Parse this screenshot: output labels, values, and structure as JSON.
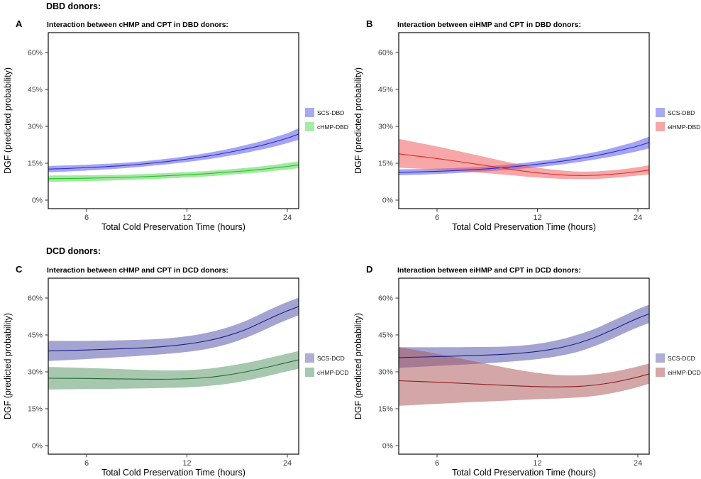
{
  "figure": {
    "group_headers": {
      "dbd": "DBD donors:",
      "dcd": "DCD donors:"
    }
  },
  "chart_data": [
    {
      "type": "area",
      "panel_label": "A",
      "title": "Interaction between cHMP and CPT in DBD donors:",
      "xlabel": "Total Cold Preservation Time (hours)",
      "ylabel": "DGF (predicted probability)",
      "x_scale": "log2",
      "xlim": [
        4.6,
        26
      ],
      "ylim": [
        -3.5,
        68
      ],
      "x_tick_values": [
        6,
        12,
        24
      ],
      "x_tick_labels": [
        "6",
        "12",
        "24"
      ],
      "y_tick_values": [
        0,
        15,
        30,
        45,
        60
      ],
      "y_tick_labels": [
        "0%",
        "15%",
        "30%",
        "45%",
        "60%"
      ],
      "grid": false,
      "legend_position": "right",
      "series": [
        {
          "name": "SCS-DBD",
          "line_color": "#2a2acc",
          "fill_color": "#4a4ae8",
          "fill_opacity": 0.5,
          "legend_color": "#a9a9f2",
          "x": [
            4.6,
            6,
            8,
            10,
            12,
            14,
            16,
            18,
            20,
            22,
            24,
            26
          ],
          "y": [
            12.6,
            13.2,
            14.2,
            15.4,
            16.7,
            18.0,
            19.4,
            20.8,
            22.2,
            23.7,
            25.2,
            26.9
          ],
          "lo": [
            11.3,
            12.0,
            13.1,
            14.3,
            15.5,
            16.7,
            18.0,
            19.2,
            20.5,
            21.8,
            23.2,
            24.5
          ],
          "hi": [
            13.9,
            14.4,
            15.3,
            16.5,
            17.9,
            19.3,
            20.8,
            22.4,
            23.9,
            25.6,
            27.2,
            29.3
          ]
        },
        {
          "name": "cHMP-DBD",
          "line_color": "#2bbd2b",
          "fill_color": "#44d344",
          "fill_opacity": 0.5,
          "legend_color": "#a6eca6",
          "x": [
            4.6,
            6,
            8,
            10,
            12,
            14,
            16,
            18,
            20,
            22,
            24,
            26
          ],
          "y": [
            8.7,
            8.9,
            9.3,
            9.8,
            10.3,
            10.8,
            11.4,
            11.9,
            12.5,
            13.1,
            13.7,
            14.3
          ],
          "lo": [
            7.4,
            7.7,
            8.2,
            8.7,
            9.2,
            9.7,
            10.3,
            10.8,
            11.3,
            11.9,
            12.4,
            13.0
          ],
          "hi": [
            10.0,
            10.1,
            10.4,
            10.9,
            11.4,
            11.9,
            12.5,
            13.1,
            13.7,
            14.4,
            15.1,
            15.8
          ]
        }
      ]
    },
    {
      "type": "area",
      "panel_label": "B",
      "title": "Interaction between eiHMP and CPT in DBD donors:",
      "xlabel": "Total Cold Preservation Time (hours)",
      "ylabel": "DGF (predicted probability)",
      "x_scale": "log2",
      "xlim": [
        4.6,
        26
      ],
      "ylim": [
        -3.5,
        68
      ],
      "x_tick_values": [
        6,
        12,
        24
      ],
      "x_tick_labels": [
        "6",
        "12",
        "24"
      ],
      "y_tick_values": [
        0,
        15,
        30,
        45,
        60
      ],
      "y_tick_labels": [
        "0%",
        "15%",
        "30%",
        "45%",
        "60%"
      ],
      "grid": false,
      "legend_position": "right",
      "series": [
        {
          "name": "SCS-DBD",
          "line_color": "#2a2acc",
          "fill_color": "#4a4ae8",
          "fill_opacity": 0.5,
          "legend_color": "#a9a9f2",
          "x": [
            4.6,
            6,
            8,
            10,
            12,
            14,
            16,
            18,
            20,
            22,
            24,
            26
          ],
          "y": [
            11.3,
            11.7,
            12.5,
            13.5,
            14.6,
            15.7,
            16.9,
            18.1,
            19.4,
            20.7,
            22.0,
            23.5
          ],
          "lo": [
            10.1,
            10.6,
            11.5,
            12.4,
            13.4,
            14.4,
            15.5,
            16.6,
            17.7,
            18.8,
            19.9,
            21.1
          ],
          "hi": [
            12.5,
            12.8,
            13.5,
            14.6,
            15.8,
            17.0,
            18.3,
            19.6,
            21.1,
            22.6,
            24.1,
            25.9
          ]
        },
        {
          "name": "eiHMP-DBD",
          "line_color": "#e02a2a",
          "fill_color": "#ef5050",
          "fill_opacity": 0.5,
          "legend_color": "#f6a7a7",
          "x": [
            4.6,
            6,
            8,
            10,
            12,
            14,
            16,
            18,
            20,
            22,
            24,
            26
          ],
          "y": [
            18.8,
            16.9,
            14.5,
            12.5,
            11.1,
            10.3,
            10.0,
            10.1,
            10.5,
            11.0,
            11.6,
            12.2
          ],
          "lo": [
            13.2,
            12.4,
            11.2,
            10.1,
            9.2,
            8.7,
            8.5,
            8.6,
            9.0,
            9.5,
            10.0,
            10.4
          ],
          "hi": [
            24.9,
            21.8,
            18.1,
            15.2,
            13.2,
            12.1,
            11.6,
            11.7,
            12.1,
            12.7,
            13.4,
            14.2
          ]
        }
      ]
    },
    {
      "type": "area",
      "panel_label": "C",
      "title": "Interaction between cHMP and CPT in DCD donors:",
      "xlabel": "Total Cold Preservation Time (hours)",
      "ylabel": "DGF (predicted probability)",
      "x_scale": "log2",
      "xlim": [
        4.6,
        26
      ],
      "ylim": [
        -3.5,
        68
      ],
      "x_tick_values": [
        6,
        12,
        24
      ],
      "x_tick_labels": [
        "6",
        "12",
        "24"
      ],
      "y_tick_values": [
        0,
        15,
        30,
        45,
        60
      ],
      "y_tick_labels": [
        "0%",
        "15%",
        "30%",
        "45%",
        "60%"
      ],
      "grid": false,
      "legend_position": "right",
      "series": [
        {
          "name": "SCS-DCD",
          "line_color": "#1d1d85",
          "fill_color": "#4a4aa8",
          "fill_opacity": 0.5,
          "legend_color": "#aeaed6",
          "x": [
            4.6,
            6,
            8,
            10,
            12,
            14,
            16,
            18,
            20,
            22,
            24,
            26
          ],
          "y": [
            38.5,
            38.9,
            39.5,
            40.2,
            41.3,
            42.8,
            44.8,
            47.2,
            50.0,
            52.6,
            54.8,
            56.6
          ],
          "lo": [
            34.4,
            35.2,
            36.2,
            37.1,
            38.1,
            39.5,
            41.4,
            43.8,
            46.4,
            49.0,
            51.2,
            53.0
          ],
          "hi": [
            42.6,
            42.6,
            42.9,
            43.4,
            44.5,
            46.1,
            48.2,
            50.7,
            53.6,
            56.2,
            58.4,
            60.2
          ]
        },
        {
          "name": "cHMP-DCD",
          "line_color": "#206b33",
          "fill_color": "#4f8f5f",
          "fill_opacity": 0.5,
          "legend_color": "#a7c7af",
          "x": [
            4.6,
            6,
            8,
            10,
            12,
            14,
            16,
            18,
            20,
            22,
            24,
            26
          ],
          "y": [
            27.4,
            27.3,
            27.1,
            27.0,
            27.2,
            27.8,
            28.8,
            30.0,
            31.3,
            32.6,
            33.8,
            34.9
          ],
          "lo": [
            22.8,
            23.0,
            23.2,
            23.4,
            23.7,
            24.3,
            25.2,
            26.4,
            27.7,
            29.0,
            30.2,
            31.3
          ],
          "hi": [
            32.0,
            31.6,
            31.0,
            30.6,
            30.7,
            31.3,
            32.4,
            33.6,
            34.9,
            36.2,
            37.4,
            38.5
          ]
        }
      ]
    },
    {
      "type": "area",
      "panel_label": "D",
      "title": "Interaction between eiHMP and CPT in DCD donors:",
      "xlabel": "Total Cold Preservation Time (hours)",
      "ylabel": "DGF (predicted probability)",
      "x_scale": "log2",
      "xlim": [
        4.6,
        26
      ],
      "ylim": [
        -3.5,
        68
      ],
      "x_tick_values": [
        6,
        12,
        24
      ],
      "x_tick_labels": [
        "6",
        "12",
        "24"
      ],
      "y_tick_values": [
        0,
        15,
        30,
        45,
        60
      ],
      "y_tick_labels": [
        "0%",
        "15%",
        "30%",
        "45%",
        "60%"
      ],
      "grid": false,
      "legend_position": "right",
      "series": [
        {
          "name": "SCS-DCD",
          "line_color": "#1d1d85",
          "fill_color": "#4a4aa8",
          "fill_opacity": 0.5,
          "legend_color": "#aeaed6",
          "x": [
            4.6,
            6,
            8,
            10,
            12,
            14,
            16,
            18,
            20,
            22,
            24,
            26
          ],
          "y": [
            35.8,
            36.2,
            36.7,
            37.3,
            38.3,
            39.8,
            41.8,
            44.2,
            46.9,
            49.5,
            51.8,
            53.6
          ],
          "lo": [
            31.6,
            32.4,
            33.3,
            34.2,
            35.2,
            36.5,
            38.3,
            40.7,
            43.3,
            45.9,
            48.1,
            49.9
          ],
          "hi": [
            40.0,
            40.0,
            40.1,
            40.4,
            41.4,
            43.1,
            45.3,
            47.7,
            50.5,
            53.1,
            55.5,
            57.3
          ]
        },
        {
          "name": "eiHMP-DCD",
          "line_color": "#8f1d1d",
          "fill_color": "#a85050",
          "fill_opacity": 0.5,
          "legend_color": "#d3a7a7",
          "x": [
            4.6,
            6,
            8,
            10,
            12,
            14,
            16,
            18,
            20,
            22,
            24,
            26
          ],
          "y": [
            26.4,
            25.8,
            25.0,
            24.4,
            24.0,
            23.9,
            24.1,
            24.7,
            25.6,
            26.7,
            27.9,
            29.2
          ],
          "lo": [
            16.2,
            17.0,
            17.8,
            18.4,
            18.9,
            19.2,
            19.6,
            20.3,
            21.3,
            22.5,
            23.8,
            25.2
          ],
          "hi": [
            40.1,
            37.3,
            33.9,
            31.3,
            29.6,
            28.7,
            28.6,
            29.1,
            29.9,
            31.0,
            32.2,
            33.4
          ]
        }
      ]
    }
  ]
}
